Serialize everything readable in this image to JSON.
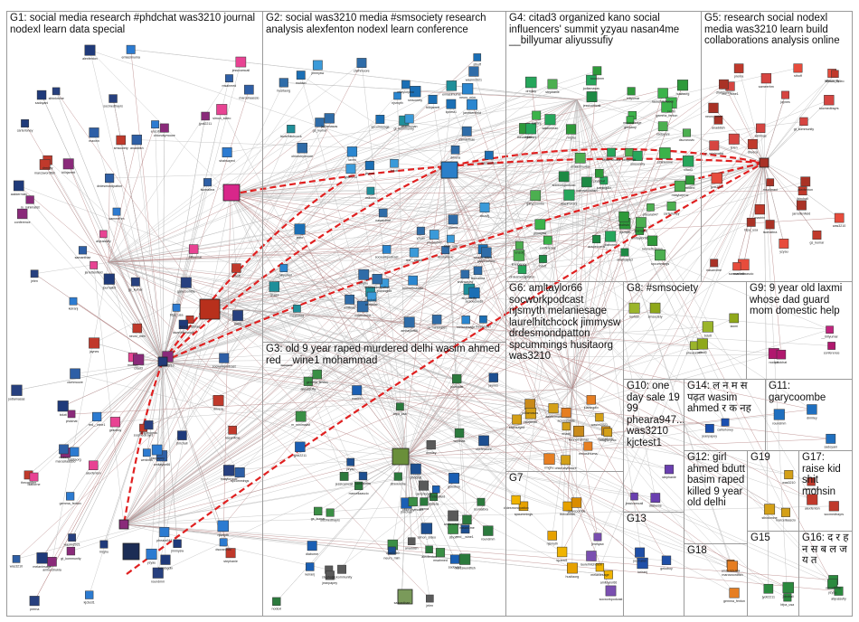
{
  "groups": [
    {
      "id": "G1",
      "title": "G1: social media research #phdchat was3210 journal nodexl learn data special"
    },
    {
      "id": "G2",
      "title": "G2: social was3210 media #smsociety research analysis alexfenton nodexl learn conference"
    },
    {
      "id": "G3",
      "title": "G3: old 9 year raped murdered delhi wasim ahmed red__wine1 mohammad"
    },
    {
      "id": "G4",
      "title": "G4: citad3 organized kano social influencers' summit yzyau nasan4me __billyumar aliyussufiy"
    },
    {
      "id": "G5",
      "title": "G5: research social nodexl media was3210 learn build collaborations analysis online"
    },
    {
      "id": "G6",
      "title": "G6: amltaylor66 socworkpodcast njsmyth melaniesage laurelhitchcock jimmysw drdesmondpatton spcummings husitaorg was3210"
    },
    {
      "id": "G7",
      "title": "G7"
    },
    {
      "id": "G8",
      "title": "G8: #smsociety"
    },
    {
      "id": "G9",
      "title": "G9: 9 year old laxmi whose dad guard mom domestic help"
    },
    {
      "id": "G10",
      "title": "G10: one day sale 19 99 pheara947... was3210 kjctest1"
    },
    {
      "id": "G11",
      "title": "G11: garycoombe"
    },
    {
      "id": "G12",
      "title": "G12: girl ahmed bdutt basim raped killed 9 year old delhi"
    },
    {
      "id": "G13",
      "title": "G13"
    },
    {
      "id": "G14",
      "title": "G14: ल न म स पढ़त wasim ahmed र क नह"
    },
    {
      "id": "G15",
      "title": "G15"
    },
    {
      "id": "G16",
      "title": "G16: द र ह न स ब ल ज य त"
    },
    {
      "id": "G17",
      "title": "G17: raise kid shit mohsin"
    },
    {
      "id": "G18",
      "title": "G18"
    },
    {
      "id": "G19",
      "title": "G19"
    }
  ],
  "node_labels": [
    "was3210",
    "marcellaascio",
    "alexfenton",
    "socmedtrayrs",
    "isomalbra",
    "jbirchall",
    "bfpa_usa",
    "jyoti2211",
    "nasan4me",
    "yzyau",
    "aliyussufiy",
    "maxirin",
    "sameerhm",
    "wmlinas",
    "m_minimalist",
    "gs_kumar",
    "msahmed",
    "red__wine1",
    "anaddish",
    "samanthae",
    "jaynes",
    "gt_kommunity",
    "drivera",
    "neuro_mim",
    "sthoff",
    "ctwhmoore",
    "jarrettenfield",
    "simon_sideo",
    "jelen",
    "prerna",
    "ohiorubymoore",
    "enzofj",
    "dsuranovic",
    "mtaylorproc",
    "aakkerman",
    "jodlamasas",
    "kennethsbrian",
    "wasim2021",
    "rmghu",
    "emiasimuma",
    "juaningdlx",
    "shahsayed",
    "acsoecoeds",
    "billrjarrett",
    "thecamber",
    "laurelhitchcock",
    "melaniesage",
    "jimmysw",
    "njsmyth",
    "spcummings",
    "husitaorg",
    "drdesmondpatton",
    "socworkpodcast",
    "amltaylor66",
    "garycoombe",
    "kjctest1",
    "pheara947",
    "bdutt",
    "mohsin",
    "laxmi",
    "smsociety",
    "citad3",
    "__billyumar",
    "conference",
    "nodexl",
    "phdchat",
    "dlaborne",
    "stephanie",
    "jessicamcall",
    "jeanpapey",
    "carterloney",
    "sadoyani",
    "roundmm",
    "drmiley",
    "keiranj",
    "gekoboy",
    "journalist",
    "gemma_fenton",
    "ambershukla",
    "marcswordfish",
    "sthinkmine"
  ]
}
